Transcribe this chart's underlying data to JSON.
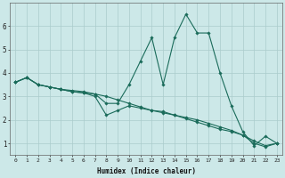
{
  "xlabel": "Humidex (Indice chaleur)",
  "bg_color": "#cce8e8",
  "line_color": "#1a6b5a",
  "grid_color": "#aacccc",
  "x": [
    0,
    1,
    2,
    3,
    4,
    5,
    6,
    7,
    8,
    9,
    10,
    11,
    12,
    13,
    14,
    15,
    16,
    17,
    18,
    19,
    20,
    21,
    22,
    23
  ],
  "line1": [
    3.6,
    3.8,
    3.5,
    3.4,
    3.3,
    3.25,
    3.2,
    3.1,
    2.7,
    2.7,
    3.5,
    4.5,
    5.5,
    3.5,
    5.5,
    6.5,
    5.7,
    5.7,
    4.0,
    2.6,
    1.5,
    0.9,
    1.3,
    1.0
  ],
  "line2": [
    3.6,
    3.8,
    3.5,
    3.4,
    3.3,
    3.2,
    3.15,
    3.1,
    3.0,
    2.85,
    2.7,
    2.55,
    2.4,
    2.3,
    2.2,
    2.05,
    1.9,
    1.75,
    1.6,
    1.5,
    1.35,
    1.1,
    0.9,
    1.0
  ],
  "line3": [
    3.6,
    3.8,
    3.5,
    3.4,
    3.3,
    3.2,
    3.15,
    3.0,
    2.2,
    2.4,
    2.6,
    2.5,
    2.4,
    2.35,
    2.2,
    2.1,
    2.0,
    1.85,
    1.7,
    1.55,
    1.35,
    1.0,
    0.85,
    1.0
  ],
  "ylim": [
    0.5,
    7.0
  ],
  "xlim": [
    -0.5,
    23.5
  ],
  "yticks": [
    1,
    2,
    3,
    4,
    5,
    6
  ],
  "xticks": [
    0,
    1,
    2,
    3,
    4,
    5,
    6,
    7,
    8,
    9,
    10,
    11,
    12,
    13,
    14,
    15,
    16,
    17,
    18,
    19,
    20,
    21,
    22,
    23
  ]
}
